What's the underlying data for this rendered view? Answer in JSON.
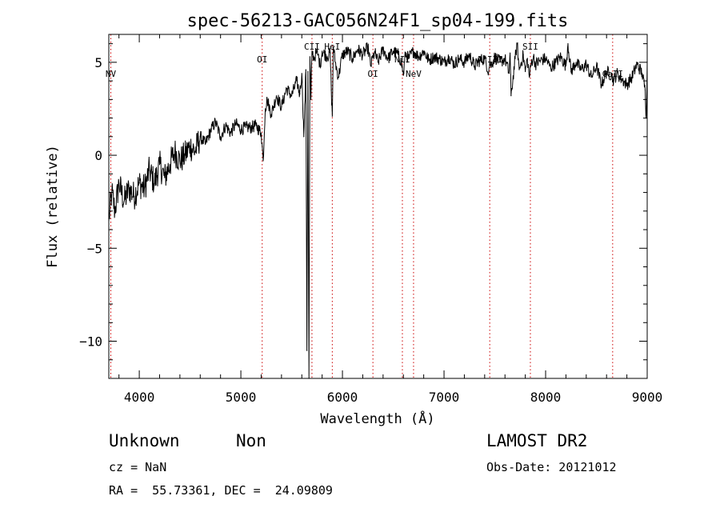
{
  "chart_data": {
    "type": "line",
    "title": "spec-56213-GAC056N24F1_sp04-199.fits",
    "xlabel": "Wavelength (Å)",
    "ylabel": "Flux (relative)",
    "xlim": [
      3700,
      9000
    ],
    "ylim": [
      -12,
      6.5
    ],
    "xticks": [
      4000,
      5000,
      6000,
      7000,
      8000,
      9000
    ],
    "xtick_labels": [
      "4000",
      "5000",
      "6000",
      "7000",
      "8000",
      "9000"
    ],
    "yticks": [
      -10,
      -5,
      0,
      5
    ],
    "ytick_labels": [
      "−10",
      "−5",
      "0",
      "5"
    ],
    "grid": false,
    "series": [
      {
        "x": [
          3700,
          3730,
          3760,
          3800,
          3850,
          3900,
          3950,
          4000,
          4050,
          4100,
          4150,
          4200,
          4250,
          4300,
          4350,
          4400,
          4450,
          4500,
          4550,
          4600,
          4650,
          4700,
          4750,
          4800,
          4850,
          4900,
          4950,
          5000,
          5050,
          5100,
          5150,
          5200,
          5220,
          5240,
          5260,
          5300,
          5350,
          5400,
          5450,
          5500,
          5550,
          5580,
          5600,
          5620,
          5640,
          5650,
          5660,
          5670,
          5680,
          5690,
          5700,
          5720,
          5740,
          5760,
          5780,
          5800,
          5850,
          5880,
          5890,
          5900,
          5910,
          5930,
          5960,
          6000,
          6050,
          6100,
          6150,
          6200,
          6250,
          6280,
          6300,
          6320,
          6350,
          6400,
          6450,
          6500,
          6550,
          6580,
          6600,
          6620,
          6650,
          6700,
          6750,
          6800,
          6850,
          6900,
          6950,
          7000,
          7050,
          7100,
          7150,
          7200,
          7250,
          7300,
          7350,
          7400,
          7440,
          7450,
          7460,
          7500,
          7550,
          7600,
          7640,
          7650,
          7660,
          7700,
          7720,
          7740,
          7760,
          7780,
          7800,
          7820,
          7840,
          7860,
          7880,
          7900,
          7950,
          8000,
          8050,
          8100,
          8150,
          8200,
          8220,
          8250,
          8300,
          8350,
          8400,
          8450,
          8500,
          8550,
          8600,
          8650,
          8670,
          8700,
          8750,
          8800,
          8850,
          8900,
          8950,
          8980,
          8990,
          9000
        ],
        "y": [
          -3.5,
          -2.0,
          -3.0,
          -1.5,
          -2.5,
          -1.8,
          -2.2,
          -1.5,
          -1.8,
          -0.8,
          -1.5,
          -0.5,
          -1.2,
          -0.5,
          0.2,
          -0.3,
          0.0,
          0.5,
          0.2,
          1.0,
          0.6,
          1.3,
          1.8,
          1.0,
          1.6,
          1.2,
          1.7,
          1.4,
          1.5,
          1.5,
          1.6,
          1.2,
          -0.3,
          2.5,
          3.0,
          2.2,
          3.2,
          2.6,
          3.6,
          3.2,
          4.0,
          3.3,
          4.4,
          1.0,
          4.6,
          -10.5,
          4.5,
          -12.0,
          5.3,
          3.0,
          5.6,
          5.2,
          5.5,
          5.4,
          4.8,
          5.6,
          5.3,
          5.5,
          3.5,
          2.1,
          5.8,
          5.0,
          4.2,
          5.4,
          5.6,
          5.2,
          5.7,
          5.4,
          5.8,
          4.8,
          5.3,
          5.5,
          5.0,
          5.7,
          5.2,
          5.6,
          5.4,
          5.0,
          4.3,
          5.5,
          5.2,
          5.6,
          5.3,
          5.6,
          5.1,
          5.3,
          5.2,
          5.0,
          5.3,
          4.9,
          5.2,
          5.0,
          5.4,
          4.8,
          5.1,
          5.2,
          4.5,
          5.0,
          4.8,
          5.3,
          5.0,
          5.2,
          4.4,
          5.5,
          3.2,
          5.2,
          6.0,
          4.6,
          5.0,
          5.4,
          4.5,
          5.2,
          4.2,
          5.0,
          5.3,
          4.9,
          5.1,
          5.2,
          4.7,
          5.0,
          5.3,
          4.8,
          6.0,
          4.5,
          5.0,
          4.6,
          4.9,
          4.2,
          4.8,
          3.8,
          4.5,
          4.3,
          4.0,
          4.4,
          4.1,
          3.8,
          4.2,
          4.9,
          4.4,
          3.5,
          2.0,
          5.0
        ]
      }
    ],
    "line_markers": [
      {
        "label": "NV",
        "x": 3720,
        "label_row": "low"
      },
      {
        "label": "OI",
        "x": 5210,
        "label_row": "mid"
      },
      {
        "label": "CII",
        "x": 5700,
        "label_row": "top"
      },
      {
        "label": "HeI",
        "x": 5900,
        "label_row": "top"
      },
      {
        "label": "OI",
        "x": 6300,
        "label_row": "low"
      },
      {
        "label": "NII",
        "x": 6590,
        "label_row": "mid"
      },
      {
        "label": "NeV",
        "x": 6700,
        "label_row": "low"
      },
      {
        "label": "ArIII",
        "x": 7450,
        "label_row": "mid"
      },
      {
        "label": "SII",
        "x": 7850,
        "label_row": "top"
      },
      {
        "label": "CaII",
        "x": 8660,
        "label_row": "low"
      }
    ],
    "marker_color": "#cc0000"
  },
  "info": {
    "class_label": "Unknown",
    "subclass_label": "Non",
    "cz_text": "cz = NaN",
    "radec_text": "RA =  55.73361, DEC =  24.09809",
    "survey_label": "LAMOST DR2",
    "obs_date_text": "Obs-Date: 20121012"
  }
}
